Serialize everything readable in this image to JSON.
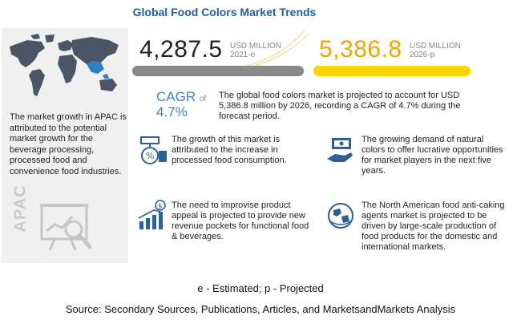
{
  "title": "Global Food Colors Market Trends",
  "left_panel": {
    "apac_text": "The market growth in APAC is attributed to the potential market growth for the beverage processing, processed food and convenience food industries.",
    "apac_label": "APAC"
  },
  "metrics": {
    "value_2021": "4,287.5",
    "unit_2021_line1": "USD MILLION",
    "unit_2021_line2": "2021-e",
    "value_2026": "5,386.8",
    "unit_2026_line1": "USD MILLION",
    "unit_2026_line2": "2026-p",
    "cagr_label": "CAGR",
    "cagr_of": "of",
    "cagr_value": "4.7%",
    "summary": "The global food colors market is projected to account for USD 5,386.8 million by 2026, recording a CAGR of 4.7% during the forecast period."
  },
  "cards": [
    {
      "text": "The growth of this market is attributed to the increase in processed food consumption.",
      "icon": "percent-money-icon"
    },
    {
      "text": "The growing demand of natural colors to offer lucrative opportunities for market players in the next five years.",
      "icon": "money-hand-icon"
    },
    {
      "text": "The need to improvise product appeal is projected to provide new revenue pockets for functional food & beverages.",
      "icon": "growth-chart-icon"
    },
    {
      "text": "The North American food anti-caking agents market is projected to be driven by large-scale production of food products for the domestic and international markets.",
      "icon": "globe-icon"
    }
  ],
  "footer": {
    "note": "e - Estimated; p - Projected",
    "source": "Source: Secondary Sources, Publications, Articles, and MarketsandMarkets Analysis"
  },
  "colors": {
    "title": "#1f5fa8",
    "cagr": "#3f84c7",
    "accent_yellow": "#ffd400",
    "value_orange": "#f0a500",
    "bar_grey": "#8a8a8a",
    "panel_grey": "#f0f0f0"
  }
}
